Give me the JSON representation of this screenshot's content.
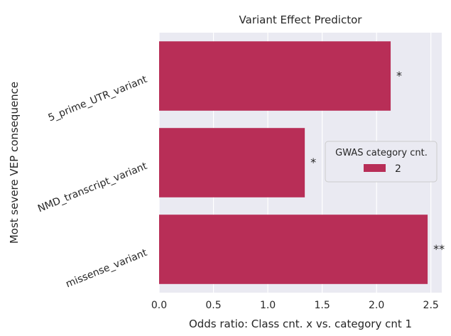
{
  "chart_data": {
    "type": "bar",
    "orientation": "horizontal",
    "title": "Variant Effect Predictor",
    "xlabel": "Odds ratio: Class cnt. x vs. category cnt 1",
    "ylabel": "Most severe VEP consequence",
    "categories": [
      "5_prime_UTR_variant",
      "NMD_transcript_variant",
      "missense_variant"
    ],
    "series": [
      {
        "name": "2",
        "values": [
          2.13,
          1.34,
          2.47
        ],
        "color": "#b82e57"
      }
    ],
    "annotations": [
      "*",
      "*",
      "**"
    ],
    "xlim": [
      0,
      2.6
    ],
    "xticks": [
      "0.0",
      "0.5",
      "1.0",
      "1.5",
      "2.0",
      "2.5"
    ],
    "xtick_values": [
      0,
      0.5,
      1.0,
      1.5,
      2.0,
      2.5
    ],
    "grid": true,
    "background": "#eaeaf2",
    "legend": {
      "title": "GWAS category cnt.",
      "placement": "center-right"
    }
  }
}
